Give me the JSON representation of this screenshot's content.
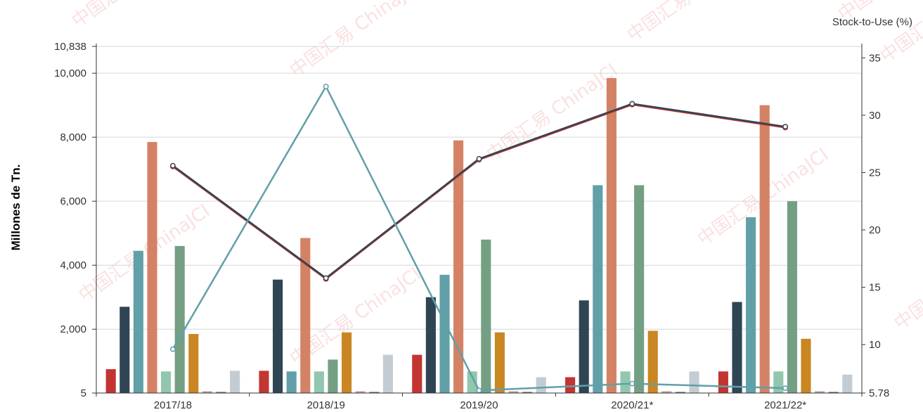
{
  "chart_data": {
    "type": "bar",
    "ylabel": "Millones de Tn.",
    "y2label": "Stock-to-Use (%)",
    "categories": [
      "2017/18",
      "2018/19",
      "2019/20",
      "2020/21*",
      "2021/22*"
    ],
    "ylim": [
      5,
      10838
    ],
    "y2lim": [
      5.78,
      36
    ],
    "yticks": [
      "10,838",
      "10,000",
      "8,000",
      "6,000",
      "4,000",
      "2,000",
      "5"
    ],
    "y2ticks": [
      "35",
      "30",
      "25",
      "20",
      "15",
      "10",
      "5.78"
    ],
    "grid": true,
    "series": [
      {
        "type": "bar",
        "color": "#c23531",
        "values": [
          750,
          700,
          1200,
          500,
          680
        ]
      },
      {
        "type": "bar",
        "color": "#2f4554",
        "values": [
          2700,
          3550,
          3000,
          2900,
          2850
        ]
      },
      {
        "type": "bar",
        "color": "#61a0a8",
        "values": [
          4450,
          680,
          3700,
          6500,
          5500
        ]
      },
      {
        "type": "bar",
        "color": "#d48265",
        "values": [
          7850,
          4850,
          7900,
          9850,
          9000
        ]
      },
      {
        "type": "bar",
        "color": "#91c7ae",
        "values": [
          680,
          680,
          680,
          680,
          680
        ]
      },
      {
        "type": "bar",
        "color": "#749f83",
        "values": [
          4600,
          1050,
          4800,
          6500,
          6000
        ]
      },
      {
        "type": "bar",
        "color": "#ca8622",
        "values": [
          1850,
          1900,
          1900,
          1950,
          1700
        ]
      },
      {
        "type": "bar",
        "color": "#bda29a",
        "values": [
          60,
          60,
          60,
          60,
          60
        ]
      },
      {
        "type": "bar",
        "color": "#6e7074",
        "values": [
          40,
          40,
          40,
          40,
          40
        ]
      },
      {
        "type": "bar",
        "color": "#c4ccd3",
        "values": [
          700,
          1200,
          500,
          680,
          580
        ]
      },
      {
        "type": "line",
        "axis": "right",
        "color": "#c23531",
        "values": [
          25.6,
          15.8,
          26.2,
          31.0,
          29.0
        ]
      },
      {
        "type": "line",
        "axis": "right",
        "color": "#2f4554",
        "values": [
          25.6,
          15.8,
          26.2,
          31.0,
          29.0
        ]
      },
      {
        "type": "line",
        "axis": "right",
        "color": "#61a0a8",
        "values": [
          9.6,
          32.5,
          6.0,
          6.6,
          6.2
        ]
      }
    ]
  },
  "watermark": {
    "text_cn": "中国汇易",
    "text_en": "ChinaJCI"
  }
}
